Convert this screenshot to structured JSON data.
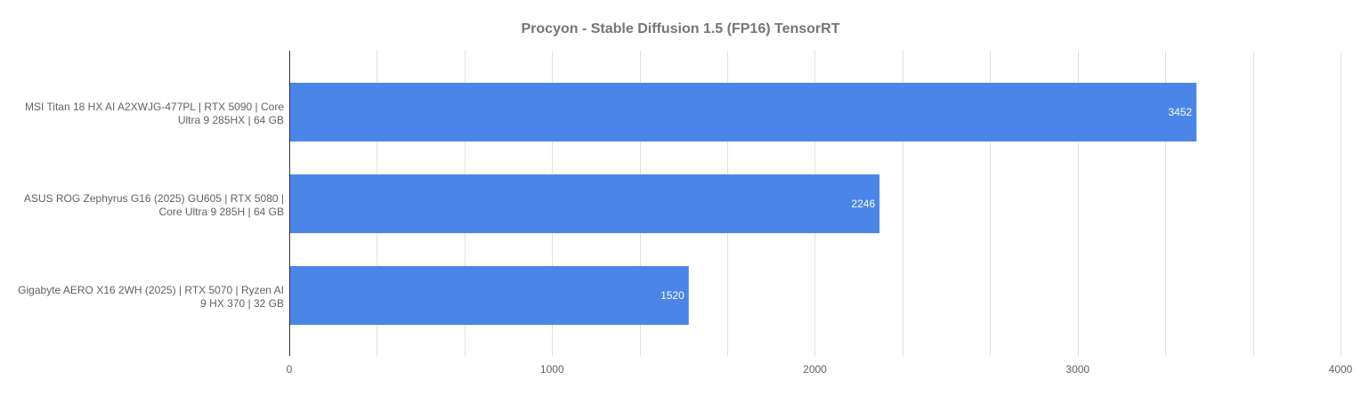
{
  "chart_data": {
    "type": "bar",
    "orientation": "horizontal",
    "title": "Procyon - Stable Diffusion 1.5 (FP16) TensorRT",
    "categories": [
      [
        "MSI Titan 18 HX AI A2XWJG-477PL | RTX 5090 | Core",
        "Ultra 9 285HX | 64 GB"
      ],
      [
        "ASUS ROG Zephyrus G16 (2025) GU605 | RTX 5080 |",
        "Core Ultra 9 285H | 64 GB"
      ],
      [
        "Gigabyte AERO X16 2WH (2025) | RTX 5070 | Ryzen AI",
        "9 HX 370 | 32 GB"
      ]
    ],
    "values": [
      3452,
      2246,
      1520
    ],
    "xlim": [
      0,
      4000
    ],
    "x_ticks": [
      0,
      1000,
      2000,
      3000,
      4000
    ],
    "minor_grid_step": 333.33,
    "grid": true,
    "legend": "none",
    "bar_color": "#4a86e8"
  }
}
